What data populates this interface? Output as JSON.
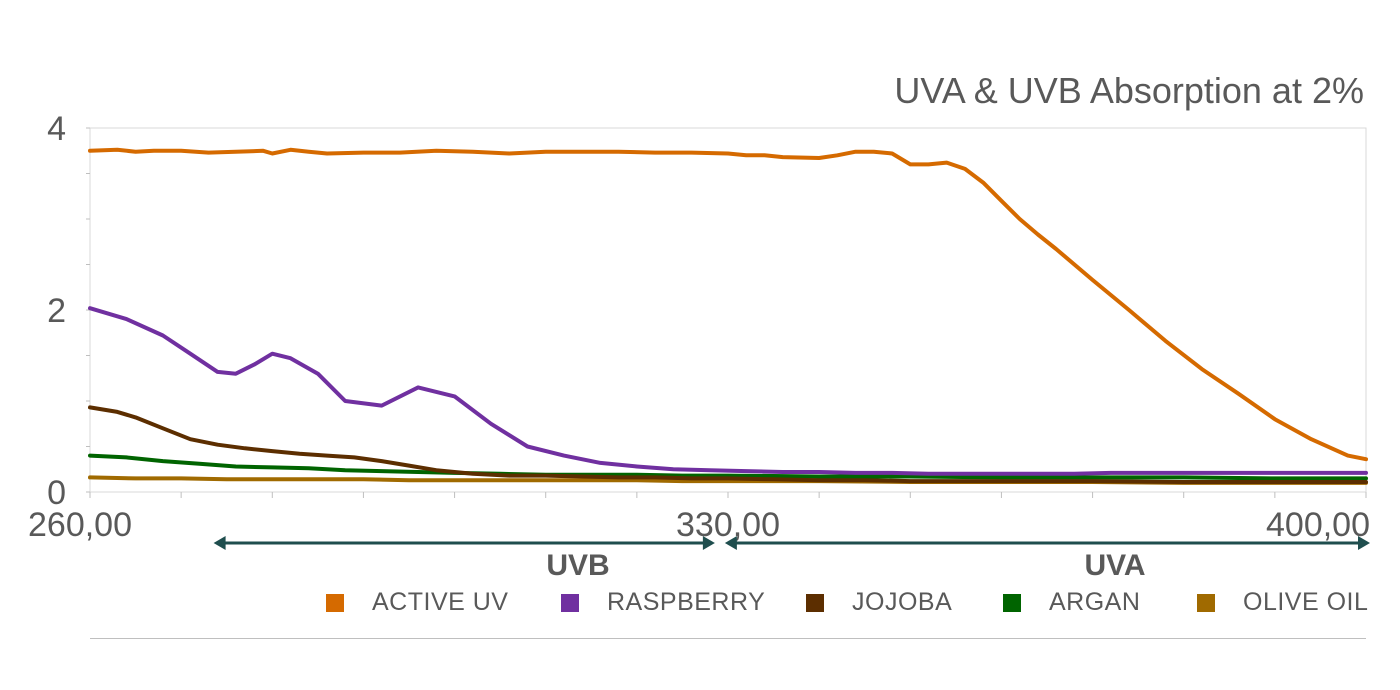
{
  "chart_data": {
    "type": "line",
    "title": "UVA & UVB Absorption at 2%",
    "xlabel": "",
    "ylabel": "",
    "xlim": [
      260,
      400
    ],
    "ylim": [
      0,
      4
    ],
    "x_ticks": [
      260,
      330,
      400
    ],
    "x_tick_labels": [
      "260,00",
      "330,00",
      "400,00"
    ],
    "y_ticks": [
      0,
      2,
      4
    ],
    "y_tick_labels": [
      "0",
      "2",
      "4"
    ],
    "grid": false,
    "legend_position": "bottom",
    "annotations": [
      {
        "label": "UVB",
        "x_start": 274,
        "x_end": 329
      },
      {
        "label": "UVA",
        "x_start": 329,
        "x_end": 400
      }
    ],
    "series": [
      {
        "name": "ACTIVE UV",
        "color": "#D56A00",
        "x": [
          260,
          263,
          265,
          267,
          270,
          273,
          276,
          279,
          280,
          282,
          284,
          286,
          290,
          294,
          298,
          302,
          306,
          310,
          314,
          318,
          322,
          326,
          330,
          332,
          334,
          336,
          340,
          342,
          344,
          346,
          348,
          350,
          352,
          354,
          356,
          358,
          360,
          362,
          364,
          366,
          370,
          374,
          378,
          382,
          386,
          390,
          394,
          398,
          400
        ],
        "y": [
          3.75,
          3.76,
          3.74,
          3.75,
          3.75,
          3.73,
          3.74,
          3.75,
          3.72,
          3.76,
          3.74,
          3.72,
          3.73,
          3.73,
          3.75,
          3.74,
          3.72,
          3.74,
          3.74,
          3.74,
          3.73,
          3.73,
          3.72,
          3.7,
          3.7,
          3.68,
          3.67,
          3.7,
          3.74,
          3.74,
          3.72,
          3.6,
          3.6,
          3.62,
          3.55,
          3.4,
          3.2,
          3.0,
          2.83,
          2.67,
          2.33,
          2.0,
          1.66,
          1.35,
          1.08,
          0.8,
          0.58,
          0.4,
          0.36
        ]
      },
      {
        "name": "RASPBERRY",
        "color": "#7030A0",
        "x": [
          260,
          264,
          268,
          271,
          274,
          276,
          278,
          280,
          282,
          285,
          288,
          292,
          296,
          300,
          304,
          308,
          312,
          316,
          320,
          324,
          328,
          332,
          336,
          340,
          344,
          348,
          352,
          356,
          360,
          364,
          368,
          372,
          376,
          380,
          384,
          388,
          392,
          396,
          400
        ],
        "y": [
          2.02,
          1.9,
          1.72,
          1.52,
          1.32,
          1.3,
          1.4,
          1.52,
          1.47,
          1.3,
          1.0,
          0.95,
          1.15,
          1.05,
          0.75,
          0.5,
          0.4,
          0.32,
          0.28,
          0.25,
          0.24,
          0.23,
          0.22,
          0.22,
          0.21,
          0.21,
          0.2,
          0.2,
          0.2,
          0.2,
          0.2,
          0.21,
          0.21,
          0.21,
          0.21,
          0.21,
          0.21,
          0.21,
          0.21
        ]
      },
      {
        "name": "JOJOBA",
        "color": "#5C2E00",
        "x": [
          260,
          263,
          265,
          268,
          271,
          274,
          277,
          280,
          283,
          286,
          289,
          292,
          295,
          298,
          302,
          306,
          310,
          314,
          318,
          322,
          326,
          330,
          335,
          340,
          345,
          350,
          355,
          360,
          370,
          380,
          390,
          400
        ],
        "y": [
          0.93,
          0.88,
          0.82,
          0.7,
          0.58,
          0.52,
          0.48,
          0.45,
          0.42,
          0.4,
          0.38,
          0.34,
          0.29,
          0.24,
          0.2,
          0.18,
          0.18,
          0.17,
          0.16,
          0.16,
          0.15,
          0.15,
          0.14,
          0.13,
          0.13,
          0.12,
          0.12,
          0.12,
          0.12,
          0.11,
          0.11,
          0.11
        ]
      },
      {
        "name": "ARGAN",
        "color": "#006400",
        "x": [
          260,
          264,
          268,
          272,
          276,
          280,
          284,
          288,
          292,
          296,
          300,
          305,
          310,
          315,
          320,
          325,
          330,
          340,
          350,
          360,
          370,
          380,
          390,
          400
        ],
        "y": [
          0.4,
          0.38,
          0.34,
          0.31,
          0.28,
          0.27,
          0.26,
          0.24,
          0.23,
          0.22,
          0.21,
          0.2,
          0.19,
          0.19,
          0.19,
          0.18,
          0.18,
          0.17,
          0.17,
          0.16,
          0.16,
          0.16,
          0.15,
          0.15
        ]
      },
      {
        "name": "OLIVE OIL",
        "color": "#A06A00",
        "x": [
          260,
          265,
          270,
          275,
          280,
          285,
          290,
          295,
          300,
          305,
          310,
          315,
          320,
          325,
          330,
          340,
          350,
          360,
          370,
          380,
          390,
          400
        ],
        "y": [
          0.16,
          0.15,
          0.15,
          0.14,
          0.14,
          0.14,
          0.14,
          0.13,
          0.13,
          0.13,
          0.13,
          0.13,
          0.13,
          0.12,
          0.12,
          0.12,
          0.11,
          0.11,
          0.11,
          0.1,
          0.1,
          0.1
        ]
      }
    ]
  }
}
